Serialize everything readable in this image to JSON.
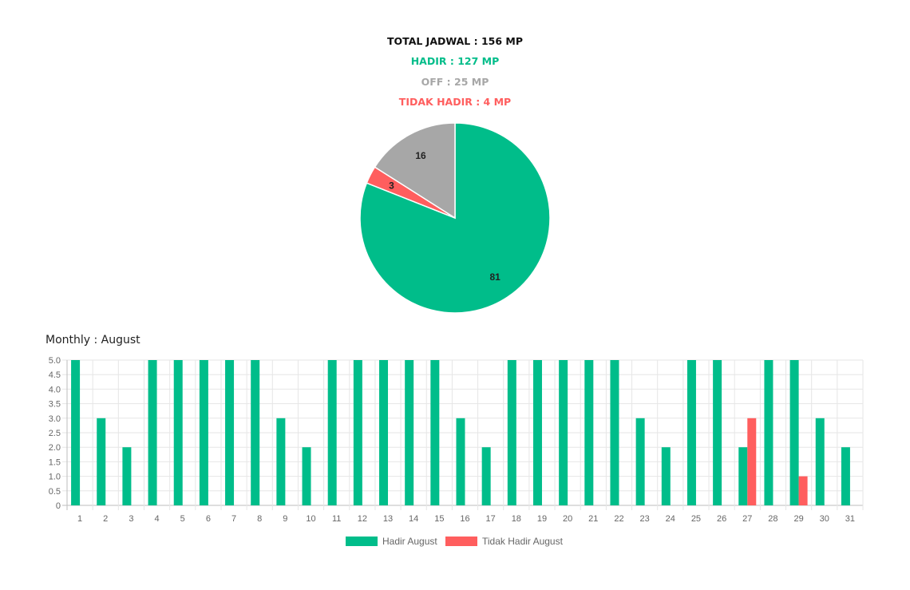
{
  "summary": {
    "total": "TOTAL JADWAL : 156 MP",
    "hadir": "HADIR : 127 MP",
    "off": "OFF : 25 MP",
    "tidak_hadir": "TIDAK HADIR : 4 MP"
  },
  "colors": {
    "hadir": "#00BD8A",
    "tidak_hadir": "#FF5E5E",
    "off": "#A7A7A7",
    "total": "#111111"
  },
  "bar_title": "Monthly : August",
  "chart_data": [
    {
      "type": "pie",
      "slices": [
        {
          "label": "Hadir",
          "value": 81,
          "color": "#00BD8A"
        },
        {
          "label": "Tidak Hadir",
          "value": 3,
          "color": "#FF5E5E"
        },
        {
          "label": "Off",
          "value": 16,
          "color": "#A7A7A7"
        }
      ],
      "data_labels": [
        "81",
        "3",
        "16"
      ]
    },
    {
      "type": "bar",
      "title": "Monthly : August",
      "categories": [
        "1",
        "2",
        "3",
        "4",
        "5",
        "6",
        "7",
        "8",
        "9",
        "10",
        "11",
        "12",
        "13",
        "14",
        "15",
        "16",
        "17",
        "18",
        "19",
        "20",
        "21",
        "22",
        "23",
        "24",
        "25",
        "26",
        "27",
        "28",
        "29",
        "30",
        "31"
      ],
      "series": [
        {
          "name": "Hadir August",
          "color": "#00BD8A",
          "values": [
            5,
            3,
            2,
            5,
            5,
            5,
            5,
            5,
            3,
            2,
            5,
            5,
            5,
            5,
            5,
            3,
            2,
            5,
            5,
            5,
            5,
            5,
            3,
            2,
            5,
            5,
            2,
            5,
            5,
            3,
            2
          ]
        },
        {
          "name": "Tidak Hadir August",
          "color": "#FF5E5E",
          "values": [
            0,
            0,
            0,
            0,
            0,
            0,
            0,
            0,
            0,
            0,
            0,
            0,
            0,
            0,
            0,
            0,
            0,
            0,
            0,
            0,
            0,
            0,
            0,
            0,
            0,
            0,
            3,
            0,
            1,
            0,
            0
          ]
        }
      ],
      "ylim": [
        0,
        5
      ],
      "yticks": [
        "0",
        "0.5",
        "1.0",
        "1.5",
        "2.0",
        "2.5",
        "3.0",
        "3.5",
        "4.0",
        "4.5",
        "5.0"
      ],
      "grid": true,
      "legend": "bottom-center"
    }
  ]
}
